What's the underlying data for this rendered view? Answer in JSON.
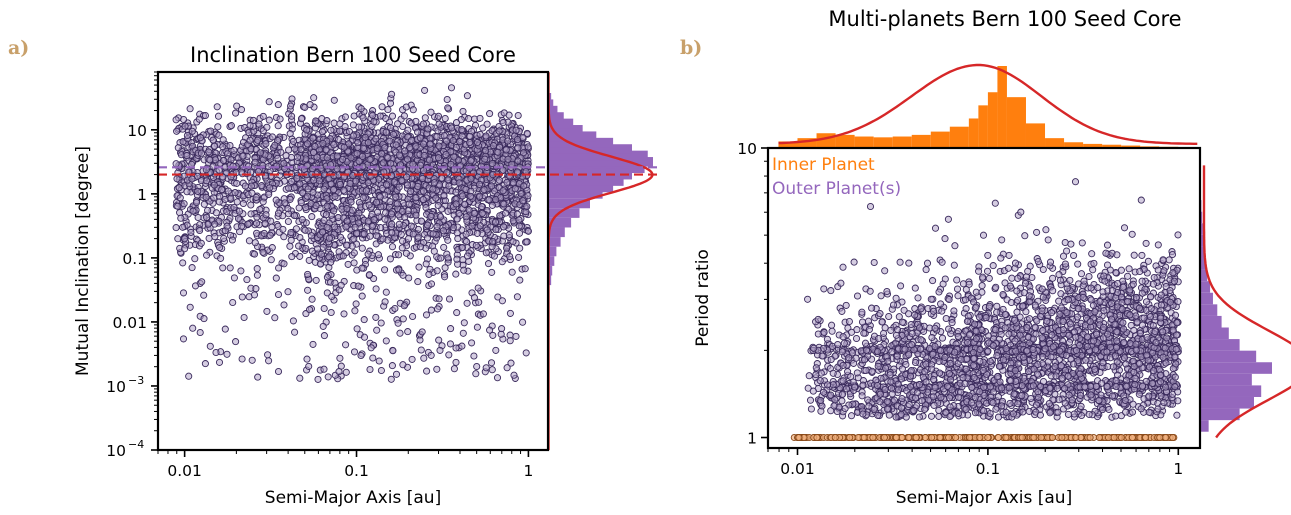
{
  "colors": {
    "scatter_fill": "#b2a4c8",
    "scatter_edge": "#3a2a5c",
    "inner_fill": "#f0b080",
    "inner_edge": "#8a4a1a",
    "purple_hist": "#9467bd",
    "orange_hist": "#ff7f0e",
    "kde_line": "#d62728",
    "median_purple": "#9467bd",
    "median_red": "#d62728"
  },
  "chart_data": [
    {
      "id": "a",
      "panel_label": "a)",
      "type": "scatter",
      "title": "Inclination Bern 100 Seed Core",
      "xlabel": "Semi-Major Axis [au]",
      "ylabel": "Mutual Inclination [degree]",
      "xscale": "log",
      "yscale": "log",
      "xlim": [
        0.007,
        1.3
      ],
      "ylim": [
        0.0001,
        80
      ],
      "xticks": [
        {
          "value": 0.01,
          "label": "0.01"
        },
        {
          "value": 0.1,
          "label": "0.1"
        },
        {
          "value": 1,
          "label": "1"
        }
      ],
      "yticks": [
        {
          "value": 0.0001,
          "base": "10",
          "exp": "−4"
        },
        {
          "value": 0.001,
          "base": "10",
          "exp": "−3"
        },
        {
          "value": 0.01,
          "label": "0.01"
        },
        {
          "value": 0.1,
          "label": "0.1"
        },
        {
          "value": 1,
          "label": "1"
        },
        {
          "value": 10,
          "label": "10"
        }
      ],
      "median_lines": [
        {
          "value": 2.0,
          "color": "#d62728",
          "style": "dashed"
        },
        {
          "value": 2.6,
          "color": "#9467bd",
          "style": "dashed"
        }
      ],
      "marginal": {
        "side": "right",
        "histogram": {
          "bin_centers_log10": [
            -1.35,
            -1.2,
            -1.05,
            -0.9,
            -0.75,
            -0.6,
            -0.45,
            -0.3,
            -0.15,
            0.0,
            0.1,
            0.2,
            0.3,
            0.4,
            0.5,
            0.6,
            0.7,
            0.8,
            0.9,
            1.0,
            1.1,
            1.2,
            1.3,
            1.4,
            1.5,
            1.6
          ],
          "heights": [
            0.03,
            0.04,
            0.06,
            0.08,
            0.12,
            0.16,
            0.22,
            0.3,
            0.4,
            0.52,
            0.62,
            0.72,
            0.8,
            0.92,
            1.0,
            0.95,
            0.8,
            0.62,
            0.46,
            0.33,
            0.24,
            0.15,
            0.09,
            0.05,
            0.03,
            0.01
          ]
        },
        "kde_peak_log10": 0.3
      },
      "scatter": {
        "n": 3600,
        "x_log10_range": [
          -2.0,
          0.0
        ],
        "y_main_log10_center": 0.45,
        "y_main_log10_sigma": 0.45,
        "y_tail_log10_min": -3.0
      }
    },
    {
      "id": "b",
      "panel_label": "b)",
      "type": "scatter",
      "title": "Multi-planets Bern 100 Seed Core",
      "xlabel": "Semi-Major Axis [au]",
      "ylabel": "Period ratio",
      "xscale": "log",
      "yscale": "log",
      "xlim": [
        0.007,
        1.3
      ],
      "ylim": [
        0.92,
        10
      ],
      "xticks": [
        {
          "value": 0.01,
          "label": "0.01"
        },
        {
          "value": 0.1,
          "label": "0.1"
        },
        {
          "value": 1,
          "label": "1"
        }
      ],
      "yticks": [
        {
          "value": 1,
          "label": "1"
        },
        {
          "value": 10,
          "label": "10"
        }
      ],
      "legend": {
        "placement": "top-left",
        "entries": [
          {
            "name": "Inner Planet",
            "color": "#ff7f0e"
          },
          {
            "name": "Outer Planet(s)",
            "color": "#9467bd"
          }
        ]
      },
      "marginal_top": {
        "histogram": {
          "bin_edges_log10": [
            -2.1,
            -2.0,
            -1.9,
            -1.8,
            -1.7,
            -1.6,
            -1.5,
            -1.4,
            -1.3,
            -1.2,
            -1.1,
            -1.05,
            -1.0,
            -0.95,
            -0.9,
            -0.8,
            -0.7,
            -0.6,
            -0.5,
            -0.4,
            -0.3,
            -0.2,
            -0.1,
            0.0,
            0.1
          ],
          "heights": [
            0.08,
            0.12,
            0.18,
            0.16,
            0.14,
            0.13,
            0.14,
            0.16,
            0.2,
            0.26,
            0.36,
            0.52,
            0.68,
            1.0,
            0.62,
            0.3,
            0.12,
            0.07,
            0.05,
            0.04,
            0.03,
            0.02,
            0.015,
            0.01
          ]
        },
        "kde_peak_log10": -1.05
      },
      "marginal_right": {
        "histogram": {
          "bin_centers_log10": [
            0.04,
            0.08,
            0.12,
            0.16,
            0.2,
            0.24,
            0.28,
            0.32,
            0.36,
            0.4,
            0.44,
            0.48,
            0.52,
            0.56,
            0.6,
            0.64,
            0.68,
            0.72,
            0.76,
            0.8,
            0.84
          ],
          "heights": [
            0.12,
            0.55,
            0.75,
            0.85,
            0.72,
            1.0,
            0.78,
            0.55,
            0.4,
            0.3,
            0.24,
            0.18,
            0.14,
            0.1,
            0.08,
            0.06,
            0.05,
            0.04,
            0.03,
            0.02,
            0.01
          ]
        },
        "kde_peak_log10": 0.25
      },
      "scatter": {
        "n_outer": 3000,
        "n_inner": 320,
        "resonance_rows": [
          2.0,
          1.5
        ]
      }
    }
  ]
}
